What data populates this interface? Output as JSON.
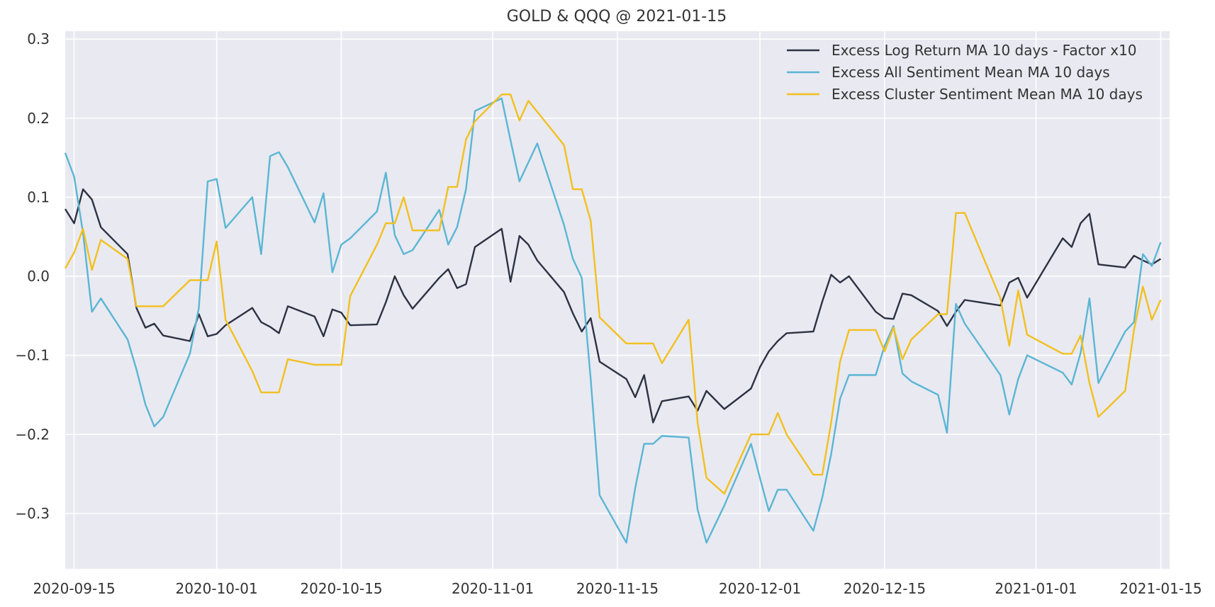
{
  "chart_data": {
    "type": "line",
    "title": "GOLD & QQQ @ 2021-01-15",
    "xlabel": "",
    "ylabel": "",
    "xlim": [
      "2020-09-14",
      "2021-01-16"
    ],
    "ylim": [
      -0.37,
      0.31
    ],
    "x_ticks": [
      "2020-09-15",
      "2020-10-01",
      "2020-10-15",
      "2020-11-01",
      "2020-11-15",
      "2020-12-01",
      "2020-12-15",
      "2021-01-01",
      "2021-01-15"
    ],
    "y_ticks": [
      0.3,
      0.2,
      0.1,
      0.0,
      -0.1,
      -0.2,
      -0.3
    ],
    "y_tick_labels": [
      "0.3",
      "0.2",
      "0.1",
      "0.0",
      "−0.1",
      "−0.2",
      "−0.3"
    ],
    "grid": true,
    "legend_position": "top-right",
    "background": "#e9e9f1",
    "series": [
      {
        "name": "Excess Log Return MA 10 days - Factor x10",
        "color": "#2c3242",
        "points": [
          [
            "2020-09-14",
            0.085
          ],
          [
            "2020-09-15",
            0.067
          ],
          [
            "2020-09-16",
            0.11
          ],
          [
            "2020-09-17",
            0.097
          ],
          [
            "2020-09-18",
            0.062
          ],
          [
            "2020-09-21",
            0.028
          ],
          [
            "2020-09-22",
            -0.04
          ],
          [
            "2020-09-23",
            -0.065
          ],
          [
            "2020-09-24",
            -0.06
          ],
          [
            "2020-09-25",
            -0.075
          ],
          [
            "2020-09-28",
            -0.082
          ],
          [
            "2020-09-29",
            -0.048
          ],
          [
            "2020-09-30",
            -0.076
          ],
          [
            "2020-10-01",
            -0.073
          ],
          [
            "2020-10-02",
            -0.062
          ],
          [
            "2020-10-05",
            -0.04
          ],
          [
            "2020-10-06",
            -0.058
          ],
          [
            "2020-10-07",
            -0.064
          ],
          [
            "2020-10-08",
            -0.072
          ],
          [
            "2020-10-09",
            -0.038
          ],
          [
            "2020-10-12",
            -0.051
          ],
          [
            "2020-10-13",
            -0.076
          ],
          [
            "2020-10-14",
            -0.042
          ],
          [
            "2020-10-15",
            -0.046
          ],
          [
            "2020-10-16",
            -0.062
          ],
          [
            "2020-10-19",
            -0.061
          ],
          [
            "2020-10-20",
            -0.033
          ],
          [
            "2020-10-21",
            0.0
          ],
          [
            "2020-10-22",
            -0.024
          ],
          [
            "2020-10-23",
            -0.041
          ],
          [
            "2020-10-26",
            -0.002
          ],
          [
            "2020-10-27",
            0.009
          ],
          [
            "2020-10-28",
            -0.015
          ],
          [
            "2020-10-29",
            -0.01
          ],
          [
            "2020-10-30",
            0.037
          ],
          [
            "2020-11-02",
            0.06
          ],
          [
            "2020-11-03",
            -0.007
          ],
          [
            "2020-11-04",
            0.051
          ],
          [
            "2020-11-05",
            0.04
          ],
          [
            "2020-11-06",
            0.02
          ],
          [
            "2020-11-09",
            -0.02
          ],
          [
            "2020-11-10",
            -0.047
          ],
          [
            "2020-11-11",
            -0.07
          ],
          [
            "2020-11-12",
            -0.053
          ],
          [
            "2020-11-13",
            -0.108
          ],
          [
            "2020-11-16",
            -0.13
          ],
          [
            "2020-11-17",
            -0.153
          ],
          [
            "2020-11-18",
            -0.125
          ],
          [
            "2020-11-19",
            -0.185
          ],
          [
            "2020-11-20",
            -0.158
          ],
          [
            "2020-11-23",
            -0.152
          ],
          [
            "2020-11-24",
            -0.17
          ],
          [
            "2020-11-25",
            -0.145
          ],
          [
            "2020-11-27",
            -0.168
          ],
          [
            "2020-11-30",
            -0.142
          ],
          [
            "2020-12-01",
            -0.115
          ],
          [
            "2020-12-02",
            -0.095
          ],
          [
            "2020-12-03",
            -0.082
          ],
          [
            "2020-12-04",
            -0.072
          ],
          [
            "2020-12-07",
            -0.07
          ],
          [
            "2020-12-08",
            -0.032
          ],
          [
            "2020-12-09",
            0.002
          ],
          [
            "2020-12-10",
            -0.008
          ],
          [
            "2020-12-11",
            0.0
          ],
          [
            "2020-12-14",
            -0.045
          ],
          [
            "2020-12-15",
            -0.053
          ],
          [
            "2020-12-16",
            -0.054
          ],
          [
            "2020-12-17",
            -0.022
          ],
          [
            "2020-12-18",
            -0.024
          ],
          [
            "2020-12-21",
            -0.044
          ],
          [
            "2020-12-22",
            -0.063
          ],
          [
            "2020-12-23",
            -0.045
          ],
          [
            "2020-12-24",
            -0.03
          ],
          [
            "2020-12-28",
            -0.037
          ],
          [
            "2020-12-29",
            -0.008
          ],
          [
            "2020-12-30",
            -0.002
          ],
          [
            "2020-12-31",
            -0.027
          ],
          [
            "2021-01-04",
            0.048
          ],
          [
            "2021-01-05",
            0.037
          ],
          [
            "2021-01-06",
            0.067
          ],
          [
            "2021-01-07",
            0.079
          ],
          [
            "2021-01-08",
            0.015
          ],
          [
            "2021-01-11",
            0.011
          ],
          [
            "2021-01-12",
            0.026
          ],
          [
            "2021-01-13",
            0.02
          ],
          [
            "2021-01-14",
            0.015
          ],
          [
            "2021-01-15",
            0.022
          ]
        ]
      },
      {
        "name": "Excess All Sentiment Mean MA 10 days",
        "color": "#5ab6d4",
        "points": [
          [
            "2020-09-14",
            0.156
          ],
          [
            "2020-09-15",
            0.126
          ],
          [
            "2020-09-16",
            0.055
          ],
          [
            "2020-09-17",
            -0.045
          ],
          [
            "2020-09-18",
            -0.028
          ],
          [
            "2020-09-21",
            -0.08
          ],
          [
            "2020-09-22",
            -0.118
          ],
          [
            "2020-09-23",
            -0.162
          ],
          [
            "2020-09-24",
            -0.19
          ],
          [
            "2020-09-25",
            -0.178
          ],
          [
            "2020-09-28",
            -0.098
          ],
          [
            "2020-09-29",
            -0.04
          ],
          [
            "2020-09-30",
            0.12
          ],
          [
            "2020-10-01",
            0.123
          ],
          [
            "2020-10-02",
            0.061
          ],
          [
            "2020-10-05",
            0.1
          ],
          [
            "2020-10-06",
            0.028
          ],
          [
            "2020-10-07",
            0.152
          ],
          [
            "2020-10-08",
            0.157
          ],
          [
            "2020-10-09",
            0.138
          ],
          [
            "2020-10-12",
            0.068
          ],
          [
            "2020-10-13",
            0.105
          ],
          [
            "2020-10-14",
            0.005
          ],
          [
            "2020-10-15",
            0.04
          ],
          [
            "2020-10-16",
            0.048
          ],
          [
            "2020-10-19",
            0.082
          ],
          [
            "2020-10-20",
            0.131
          ],
          [
            "2020-10-21",
            0.052
          ],
          [
            "2020-10-22",
            0.028
          ],
          [
            "2020-10-23",
            0.033
          ],
          [
            "2020-10-26",
            0.084
          ],
          [
            "2020-10-27",
            0.04
          ],
          [
            "2020-10-28",
            0.062
          ],
          [
            "2020-10-29",
            0.11
          ],
          [
            "2020-10-30",
            0.209
          ],
          [
            "2020-11-02",
            0.225
          ],
          [
            "2020-11-03",
            0.172
          ],
          [
            "2020-11-04",
            0.12
          ],
          [
            "2020-11-05",
            0.144
          ],
          [
            "2020-11-06",
            0.168
          ],
          [
            "2020-11-09",
            0.065
          ],
          [
            "2020-11-10",
            0.022
          ],
          [
            "2020-11-11",
            -0.002
          ],
          [
            "2020-11-12",
            -0.13
          ],
          [
            "2020-11-13",
            -0.277
          ],
          [
            "2020-11-16",
            -0.337
          ],
          [
            "2020-11-17",
            -0.268
          ],
          [
            "2020-11-18",
            -0.212
          ],
          [
            "2020-11-19",
            -0.212
          ],
          [
            "2020-11-20",
            -0.202
          ],
          [
            "2020-11-23",
            -0.204
          ],
          [
            "2020-11-24",
            -0.295
          ],
          [
            "2020-11-25",
            -0.337
          ],
          [
            "2020-11-27",
            -0.29
          ],
          [
            "2020-11-30",
            -0.212
          ],
          [
            "2020-12-01",
            -0.255
          ],
          [
            "2020-12-02",
            -0.297
          ],
          [
            "2020-12-03",
            -0.27
          ],
          [
            "2020-12-04",
            -0.27
          ],
          [
            "2020-12-07",
            -0.322
          ],
          [
            "2020-12-08",
            -0.28
          ],
          [
            "2020-12-09",
            -0.225
          ],
          [
            "2020-12-10",
            -0.155
          ],
          [
            "2020-12-11",
            -0.125
          ],
          [
            "2020-12-14",
            -0.125
          ],
          [
            "2020-12-15",
            -0.088
          ],
          [
            "2020-12-16",
            -0.063
          ],
          [
            "2020-12-17",
            -0.123
          ],
          [
            "2020-12-18",
            -0.133
          ],
          [
            "2020-12-21",
            -0.15
          ],
          [
            "2020-12-22",
            -0.198
          ],
          [
            "2020-12-23",
            -0.035
          ],
          [
            "2020-12-24",
            -0.06
          ],
          [
            "2020-12-28",
            -0.125
          ],
          [
            "2020-12-29",
            -0.175
          ],
          [
            "2020-12-30",
            -0.13
          ],
          [
            "2020-12-31",
            -0.1
          ],
          [
            "2021-01-04",
            -0.122
          ],
          [
            "2021-01-05",
            -0.137
          ],
          [
            "2021-01-06",
            -0.097
          ],
          [
            "2021-01-07",
            -0.028
          ],
          [
            "2021-01-08",
            -0.135
          ],
          [
            "2021-01-11",
            -0.07
          ],
          [
            "2021-01-12",
            -0.058
          ],
          [
            "2021-01-13",
            0.028
          ],
          [
            "2021-01-14",
            0.013
          ],
          [
            "2021-01-15",
            0.043
          ]
        ]
      },
      {
        "name": "Excess Cluster Sentiment Mean MA 10 days",
        "color": "#f2c01e",
        "points": [
          [
            "2020-09-14",
            0.01
          ],
          [
            "2020-09-15",
            0.03
          ],
          [
            "2020-09-16",
            0.06
          ],
          [
            "2020-09-17",
            0.008
          ],
          [
            "2020-09-18",
            0.046
          ],
          [
            "2020-09-21",
            0.022
          ],
          [
            "2020-09-22",
            -0.038
          ],
          [
            "2020-09-23",
            -0.038
          ],
          [
            "2020-09-25",
            -0.038
          ],
          [
            "2020-09-28",
            -0.005
          ],
          [
            "2020-09-29",
            -0.005
          ],
          [
            "2020-09-30",
            -0.005
          ],
          [
            "2020-10-01",
            0.044
          ],
          [
            "2020-10-02",
            -0.055
          ],
          [
            "2020-10-05",
            -0.12
          ],
          [
            "2020-10-06",
            -0.147
          ],
          [
            "2020-10-07",
            -0.147
          ],
          [
            "2020-10-08",
            -0.147
          ],
          [
            "2020-10-09",
            -0.105
          ],
          [
            "2020-10-12",
            -0.112
          ],
          [
            "2020-10-15",
            -0.112
          ],
          [
            "2020-10-16",
            -0.025
          ],
          [
            "2020-10-19",
            0.04
          ],
          [
            "2020-10-20",
            0.067
          ],
          [
            "2020-10-21",
            0.067
          ],
          [
            "2020-10-22",
            0.1
          ],
          [
            "2020-10-23",
            0.058
          ],
          [
            "2020-10-26",
            0.058
          ],
          [
            "2020-10-27",
            0.113
          ],
          [
            "2020-10-28",
            0.113
          ],
          [
            "2020-10-29",
            0.173
          ],
          [
            "2020-10-30",
            0.196
          ],
          [
            "2020-11-02",
            0.23
          ],
          [
            "2020-11-03",
            0.23
          ],
          [
            "2020-11-04",
            0.197
          ],
          [
            "2020-11-05",
            0.222
          ],
          [
            "2020-11-09",
            0.166
          ],
          [
            "2020-11-10",
            0.11
          ],
          [
            "2020-11-11",
            0.11
          ],
          [
            "2020-11-12",
            0.07
          ],
          [
            "2020-11-13",
            -0.052
          ],
          [
            "2020-11-16",
            -0.085
          ],
          [
            "2020-11-18",
            -0.085
          ],
          [
            "2020-11-19",
            -0.085
          ],
          [
            "2020-11-20",
            -0.11
          ],
          [
            "2020-11-23",
            -0.055
          ],
          [
            "2020-11-24",
            -0.185
          ],
          [
            "2020-11-25",
            -0.255
          ],
          [
            "2020-11-27",
            -0.275
          ],
          [
            "2020-11-30",
            -0.2
          ],
          [
            "2020-12-02",
            -0.2
          ],
          [
            "2020-12-03",
            -0.173
          ],
          [
            "2020-12-04",
            -0.2
          ],
          [
            "2020-12-07",
            -0.251
          ],
          [
            "2020-12-08",
            -0.251
          ],
          [
            "2020-12-09",
            -0.185
          ],
          [
            "2020-12-10",
            -0.108
          ],
          [
            "2020-12-11",
            -0.068
          ],
          [
            "2020-12-14",
            -0.068
          ],
          [
            "2020-12-15",
            -0.095
          ],
          [
            "2020-12-16",
            -0.065
          ],
          [
            "2020-12-17",
            -0.105
          ],
          [
            "2020-12-18",
            -0.08
          ],
          [
            "2020-12-21",
            -0.048
          ],
          [
            "2020-12-22",
            -0.048
          ],
          [
            "2020-12-23",
            0.08
          ],
          [
            "2020-12-24",
            0.08
          ],
          [
            "2020-12-28",
            -0.028
          ],
          [
            "2020-12-29",
            -0.088
          ],
          [
            "2020-12-30",
            -0.018
          ],
          [
            "2020-12-31",
            -0.074
          ],
          [
            "2021-01-04",
            -0.098
          ],
          [
            "2021-01-05",
            -0.098
          ],
          [
            "2021-01-06",
            -0.075
          ],
          [
            "2021-01-07",
            -0.135
          ],
          [
            "2021-01-08",
            -0.178
          ],
          [
            "2021-01-11",
            -0.145
          ],
          [
            "2021-01-12",
            -0.068
          ],
          [
            "2021-01-13",
            -0.013
          ],
          [
            "2021-01-14",
            -0.055
          ],
          [
            "2021-01-15",
            -0.03
          ]
        ]
      }
    ]
  }
}
